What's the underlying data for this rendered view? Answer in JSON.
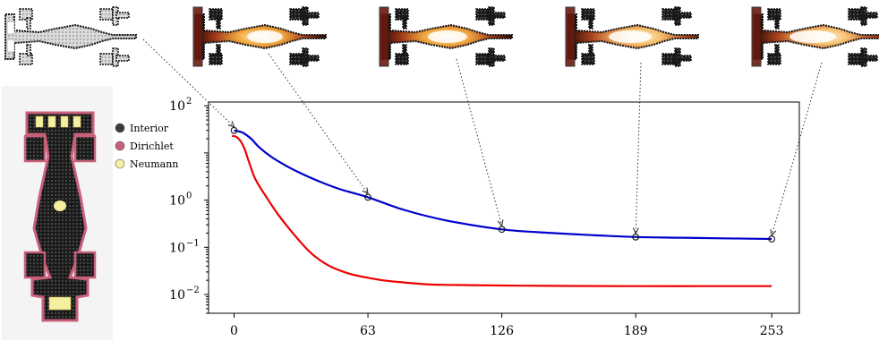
{
  "chart_data": {
    "type": "line",
    "title": "",
    "xlabel": "",
    "ylabel": "",
    "y_scale": "log",
    "xlim": [
      -12,
      266
    ],
    "ylim": [
      0.004,
      120
    ],
    "xticks": [
      0,
      63,
      126,
      189,
      253
    ],
    "xtick_labels": [
      "0",
      "63",
      "126",
      "189",
      "253"
    ],
    "yticks": [
      0.01,
      0.1,
      1,
      100
    ],
    "ytick_labels": [
      "10",
      "10",
      "10",
      "10"
    ],
    "ytick_exponents": [
      "−2",
      "−1",
      "0",
      "2"
    ],
    "grid": false,
    "series": [
      {
        "color": "#0000cc",
        "x": [
          0,
          4,
          8,
          12,
          18,
          25,
          32,
          40,
          50,
          63,
          80,
          100,
          126,
          150,
          170,
          189,
          210,
          230,
          253
        ],
        "y": [
          30,
          27,
          20,
          13,
          8,
          5.2,
          3.6,
          2.5,
          1.7,
          1.15,
          0.62,
          0.37,
          0.24,
          0.2,
          0.18,
          0.165,
          0.16,
          0.155,
          0.15
        ]
      },
      {
        "color": "#ee0000",
        "x": [
          -1,
          1,
          3,
          5,
          7,
          10,
          15,
          20,
          25,
          30,
          35,
          40,
          45,
          50,
          55,
          60,
          70,
          80,
          90,
          100,
          126,
          150,
          189,
          220,
          253
        ],
        "y": [
          23,
          22,
          18,
          12,
          6.5,
          2.8,
          1.2,
          0.55,
          0.28,
          0.15,
          0.085,
          0.055,
          0.04,
          0.032,
          0.027,
          0.024,
          0.02,
          0.018,
          0.0165,
          0.016,
          0.0155,
          0.0152,
          0.015,
          0.015,
          0.015
        ]
      }
    ],
    "markers": {
      "x": [
        0,
        63,
        126,
        189,
        253
      ],
      "y": [
        30,
        1.15,
        0.24,
        0.165,
        0.15
      ]
    }
  },
  "legend": {
    "placement": "beside mesh inset, left",
    "items": [
      {
        "label": "Interior",
        "color": "#3a3a3a"
      },
      {
        "label": "Dirichlet",
        "color": "#c8607a"
      },
      {
        "label": "Neumann",
        "color": "#f4f0a0"
      }
    ]
  },
  "snapshots": {
    "description_free": true,
    "iterations": [
      0,
      63,
      126,
      189,
      253
    ]
  }
}
